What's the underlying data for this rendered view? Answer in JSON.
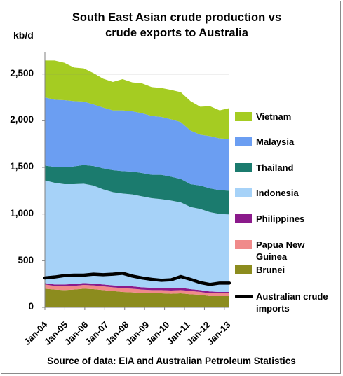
{
  "chart_data": {
    "type": "area",
    "title": "South East Asian crude production vs crude exports to Australia",
    "title_lines": [
      "South East Asian crude production vs",
      "crude exports to Australia"
    ],
    "ylabel": "kb/d",
    "ylim": [
      0,
      2700
    ],
    "yticks": [
      0,
      500,
      1000,
      1500,
      2000,
      2500
    ],
    "ytick_labels": [
      "0",
      "500",
      "1,000",
      "1,500",
      "2,000",
      "2,500"
    ],
    "xticks": [
      "Jan-04",
      "Jan-05",
      "Jan-06",
      "Jan-07",
      "Jan-08",
      "Jan-09",
      "Jan-10",
      "Jan-11",
      "Jan-12",
      "Jan-13"
    ],
    "x": [
      "Jan-04",
      "Jul-04",
      "Jan-05",
      "Jul-05",
      "Jan-06",
      "Jul-06",
      "Jan-07",
      "Jul-07",
      "Jan-08",
      "Jul-08",
      "Jan-09",
      "Jul-09",
      "Jan-10",
      "Jul-10",
      "Jan-11",
      "Jul-11",
      "Jan-12",
      "Jul-12",
      "Jan-13",
      "Apr-13"
    ],
    "stacking": "stacked",
    "series": [
      {
        "name": "Brunei",
        "color": "#8c8c1e",
        "values": [
          200,
          190,
          185,
          190,
          200,
          195,
          185,
          175,
          165,
          160,
          155,
          150,
          150,
          145,
          150,
          140,
          135,
          120,
          120,
          120
        ]
      },
      {
        "name": "Papua New Guinea",
        "color": "#f08a8a",
        "values": [
          45,
          40,
          40,
          40,
          40,
          40,
          40,
          40,
          40,
          40,
          35,
          35,
          35,
          35,
          35,
          35,
          30,
          30,
          30,
          30
        ]
      },
      {
        "name": "Philippines",
        "color": "#8b1a8b",
        "values": [
          15,
          15,
          20,
          20,
          20,
          20,
          20,
          20,
          25,
          25,
          25,
          25,
          25,
          25,
          25,
          20,
          20,
          20,
          15,
          15
        ]
      },
      {
        "name": "Indonesia",
        "color": "#a6d2f8",
        "values": [
          1100,
          1090,
          1075,
          1070,
          1065,
          1050,
          1020,
          1000,
          990,
          985,
          975,
          960,
          950,
          940,
          915,
          880,
          870,
          850,
          835,
          830
        ]
      },
      {
        "name": "Thailand",
        "color": "#1b7b6e",
        "values": [
          160,
          170,
          180,
          190,
          200,
          210,
          225,
          235,
          240,
          245,
          250,
          250,
          260,
          255,
          250,
          245,
          250,
          255,
          255,
          255
        ]
      },
      {
        "name": "Malaysia",
        "color": "#6b9ef2",
        "values": [
          730,
          720,
          720,
          700,
          680,
          660,
          650,
          640,
          650,
          645,
          640,
          630,
          620,
          615,
          610,
          575,
          545,
          560,
          555,
          555
        ]
      },
      {
        "name": "Vietnam",
        "color": "#a5cc22",
        "values": [
          395,
          420,
          400,
          360,
          355,
          335,
          310,
          305,
          335,
          310,
          320,
          310,
          310,
          315,
          320,
          315,
          300,
          320,
          300,
          330
        ]
      }
    ],
    "line_series": {
      "name": "Australian crude imports",
      "color": "#000000",
      "values": [
        315,
        325,
        340,
        345,
        345,
        355,
        350,
        355,
        365,
        335,
        315,
        300,
        290,
        295,
        330,
        300,
        265,
        245,
        260,
        260
      ]
    },
    "legend": [
      "Vietnam",
      "Malaysia",
      "Thailand",
      "Indonesia",
      "Philippines",
      "Papua New Guinea",
      "Brunei",
      "Australian crude imports"
    ],
    "legend_position": "right",
    "gridlines": [
      2500
    ],
    "source": "Source of data: EIA and Australian Petroleum Statistics"
  }
}
